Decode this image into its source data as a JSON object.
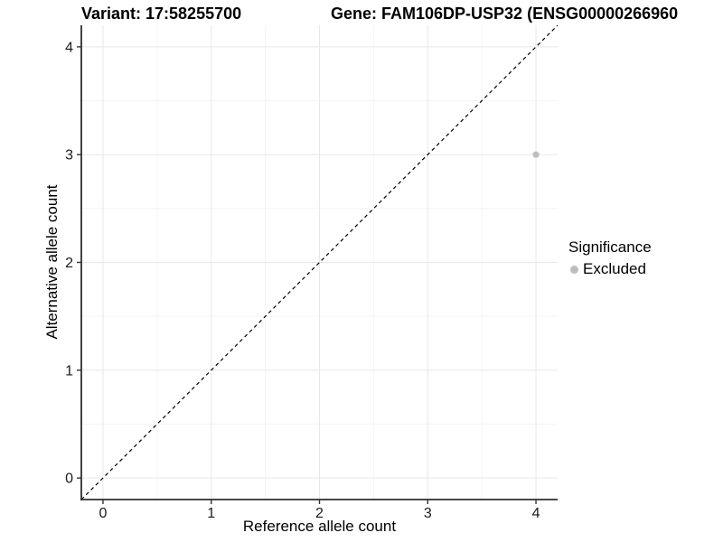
{
  "chart_data": {
    "type": "scatter",
    "titles": {
      "left": "Variant: 17:58255700",
      "right": "Gene: FAM106DP-USP32 (ENSG00000266960"
    },
    "xlabel": "Reference allele count",
    "ylabel": "Alternative allele count",
    "xlim": [
      -0.2,
      4.2
    ],
    "ylim": [
      -0.2,
      4.2
    ],
    "x_ticks": [
      0,
      1,
      2,
      3,
      4
    ],
    "y_ticks": [
      0,
      1,
      2,
      3,
      4
    ],
    "x_minor_ticks": [
      0.5,
      1.5,
      2.5,
      3.5
    ],
    "y_minor_ticks": [
      0.5,
      1.5,
      2.5,
      3.5
    ],
    "grid": "major+minor",
    "reference_line": {
      "description": "identity line y = x",
      "style": "dashed",
      "color": "#000000",
      "from": [
        -0.2,
        -0.2
      ],
      "to": [
        4.2,
        4.2
      ]
    },
    "series": [
      {
        "name": "Excluded",
        "color": "#bdbdbd",
        "points": [
          {
            "x": 4,
            "y": 3
          }
        ]
      }
    ],
    "legend": {
      "title": "Significance",
      "position": "right",
      "items": [
        {
          "label": "Excluded",
          "color": "#bdbdbd",
          "marker": "dot"
        }
      ]
    },
    "colors": {
      "background": "#ffffff",
      "grid_major": "#e8e8e8",
      "grid_minor": "#f4f4f4",
      "axis_line": "#2e2e2e",
      "tick_mark": "#333333",
      "tick_label": "#1a1a1a",
      "title_text": "#000000"
    }
  }
}
